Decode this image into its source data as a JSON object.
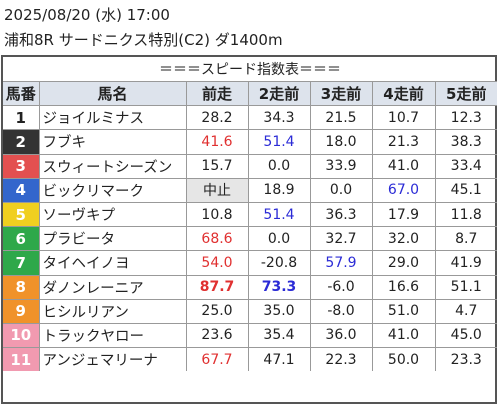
{
  "header": {
    "line1": "2025/08/20 (水) 17:00",
    "line2": "浦和8R サードニクス特別(C2) ダ1400m"
  },
  "table": {
    "title": "＝＝＝スピード指数表＝＝＝",
    "columns": [
      "馬番",
      "馬名",
      "前走",
      "2走前",
      "3走前",
      "4走前",
      "5走前"
    ],
    "rows": [
      {
        "no": "1",
        "name": "ジョイルミナス",
        "bg": "#ffffff",
        "fg": "#222222",
        "v": [
          {
            "t": "28.2",
            "c": ""
          },
          {
            "t": "34.3",
            "c": ""
          },
          {
            "t": "21.5",
            "c": ""
          },
          {
            "t": "10.7",
            "c": ""
          },
          {
            "t": "12.3",
            "c": ""
          }
        ]
      },
      {
        "no": "2",
        "name": "フブキ",
        "bg": "#333333",
        "fg": "#ffffff",
        "v": [
          {
            "t": "41.6",
            "c": "red"
          },
          {
            "t": "51.4",
            "c": "blue"
          },
          {
            "t": "18.0",
            "c": ""
          },
          {
            "t": "21.3",
            "c": ""
          },
          {
            "t": "38.3",
            "c": ""
          }
        ]
      },
      {
        "no": "3",
        "name": "スウィートシーズン",
        "bg": "#e35050",
        "fg": "#ffffff",
        "v": [
          {
            "t": "15.7",
            "c": ""
          },
          {
            "t": "0.0",
            "c": ""
          },
          {
            "t": "33.9",
            "c": ""
          },
          {
            "t": "41.0",
            "c": ""
          },
          {
            "t": "33.4",
            "c": ""
          }
        ]
      },
      {
        "no": "4",
        "name": "ビックリマーク",
        "bg": "#3366cc",
        "fg": "#ffffff",
        "v": [
          {
            "t": "中止",
            "c": "blank"
          },
          {
            "t": "18.9",
            "c": ""
          },
          {
            "t": "0.0",
            "c": ""
          },
          {
            "t": "67.0",
            "c": "blue"
          },
          {
            "t": "45.1",
            "c": ""
          }
        ]
      },
      {
        "no": "5",
        "name": "ソーヴキプ",
        "bg": "#f0cf20",
        "fg": "#ffffff",
        "v": [
          {
            "t": "10.8",
            "c": ""
          },
          {
            "t": "51.4",
            "c": "blue"
          },
          {
            "t": "36.3",
            "c": ""
          },
          {
            "t": "17.9",
            "c": ""
          },
          {
            "t": "11.8",
            "c": ""
          }
        ]
      },
      {
        "no": "6",
        "name": "プラビータ",
        "bg": "#2ea84a",
        "fg": "#ffffff",
        "v": [
          {
            "t": "68.6",
            "c": "red"
          },
          {
            "t": "0.0",
            "c": ""
          },
          {
            "t": "32.7",
            "c": ""
          },
          {
            "t": "32.0",
            "c": ""
          },
          {
            "t": "8.7",
            "c": ""
          }
        ]
      },
      {
        "no": "7",
        "name": "タイヘイノヨ",
        "bg": "#2ea84a",
        "fg": "#ffffff",
        "v": [
          {
            "t": "54.0",
            "c": "red"
          },
          {
            "t": "-20.8",
            "c": ""
          },
          {
            "t": "57.9",
            "c": "blue"
          },
          {
            "t": "29.0",
            "c": ""
          },
          {
            "t": "41.9",
            "c": ""
          }
        ]
      },
      {
        "no": "8",
        "name": "ダノンレーニア",
        "bg": "#f0922a",
        "fg": "#ffffff",
        "v": [
          {
            "t": "87.7",
            "c": "red bold"
          },
          {
            "t": "73.3",
            "c": "blue bold"
          },
          {
            "t": "-6.0",
            "c": ""
          },
          {
            "t": "16.6",
            "c": ""
          },
          {
            "t": "51.1",
            "c": ""
          }
        ]
      },
      {
        "no": "9",
        "name": "ヒシルリアン",
        "bg": "#f0922a",
        "fg": "#ffffff",
        "v": [
          {
            "t": "25.0",
            "c": ""
          },
          {
            "t": "35.0",
            "c": ""
          },
          {
            "t": "-8.0",
            "c": ""
          },
          {
            "t": "51.0",
            "c": ""
          },
          {
            "t": "4.7",
            "c": ""
          }
        ]
      },
      {
        "no": "10",
        "name": "トラックヤロー",
        "bg": "#f19ab0",
        "fg": "#ffffff",
        "v": [
          {
            "t": "23.6",
            "c": ""
          },
          {
            "t": "35.4",
            "c": ""
          },
          {
            "t": "36.0",
            "c": ""
          },
          {
            "t": "41.0",
            "c": ""
          },
          {
            "t": "45.0",
            "c": ""
          }
        ]
      },
      {
        "no": "11",
        "name": "アンジェマリーナ",
        "bg": "#f19ab0",
        "fg": "#ffffff",
        "v": [
          {
            "t": "67.7",
            "c": "red"
          },
          {
            "t": "47.1",
            "c": ""
          },
          {
            "t": "22.3",
            "c": ""
          },
          {
            "t": "50.0",
            "c": ""
          },
          {
            "t": "23.3",
            "c": ""
          }
        ]
      }
    ]
  }
}
